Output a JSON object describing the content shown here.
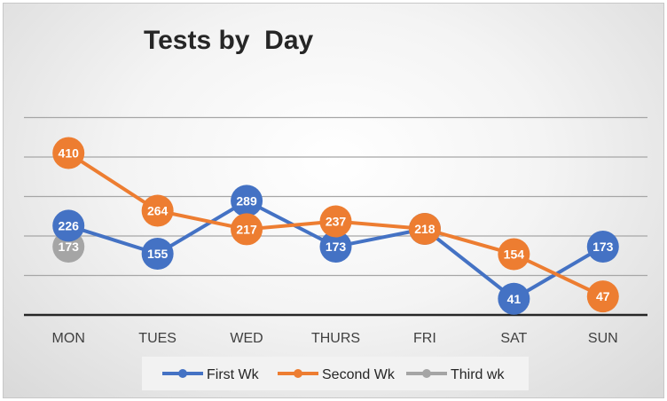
{
  "chart_data": {
    "type": "line",
    "title": "Tests by  Day",
    "xlabel": "",
    "ylabel": "",
    "categories": [
      "MON",
      "TUES",
      "WED",
      "THURS",
      "FRI",
      "SAT",
      "SUN"
    ],
    "ylim": [
      0,
      500
    ],
    "grid": true,
    "legend_position": "bottom",
    "series": [
      {
        "name": "First Wk",
        "color": "#4472C4",
        "values": [
          226,
          155,
          289,
          173,
          218,
          41,
          173
        ]
      },
      {
        "name": "Second Wk",
        "color": "#ED7D31",
        "values": [
          410,
          264,
          217,
          237,
          218,
          154,
          47
        ]
      },
      {
        "name": "Third wk",
        "color": "#A5A5A5",
        "values": [
          173,
          null,
          null,
          null,
          null,
          null,
          null
        ]
      }
    ]
  }
}
